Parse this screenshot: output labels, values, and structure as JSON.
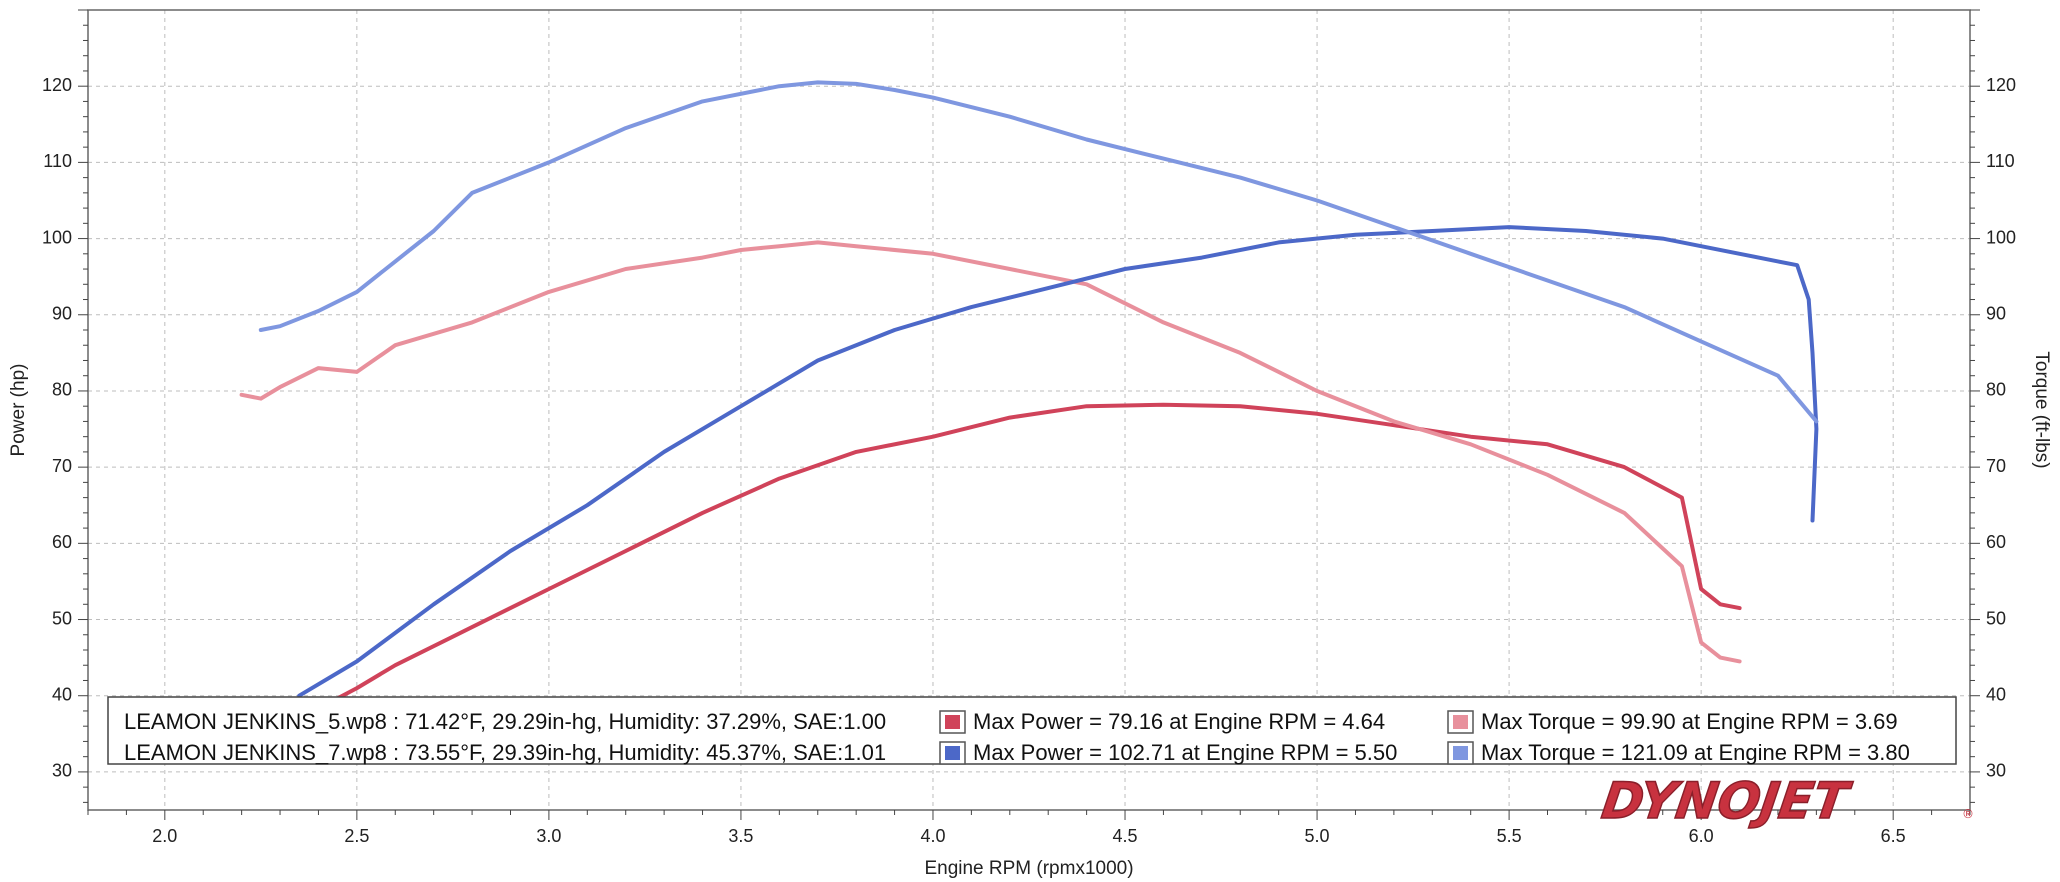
{
  "chart_data": {
    "type": "line",
    "title": "",
    "xlabel": "Engine RPM (rpmx1000)",
    "ylabel_left": "Power (hp)",
    "ylabel_right": "Torque (ft-lbs)",
    "xlim": [
      1.8,
      6.7
    ],
    "ylim_left": [
      25,
      130
    ],
    "ylim_right": [
      25,
      130
    ],
    "x_ticks": [
      "2.0",
      "2.5",
      "3.0",
      "3.5",
      "4.0",
      "4.5",
      "5.0",
      "5.5",
      "6.0",
      "6.5"
    ],
    "y_ticks_left": [
      "30",
      "40",
      "50",
      "60",
      "70",
      "80",
      "90",
      "100",
      "110",
      "120"
    ],
    "y_ticks_right": [
      "30",
      "40",
      "50",
      "60",
      "70",
      "80",
      "90",
      "100",
      "110",
      "120"
    ],
    "grid": true,
    "legend_position": "bottom",
    "colors": {
      "run5_power": "#d0435a",
      "run5_torque": "#e8909c",
      "run7_power": "#4c68c8",
      "run7_torque": "#7f97e0"
    },
    "series": [
      {
        "key": "run5_power",
        "axis": "left",
        "x": [
          2.35,
          2.5,
          2.6,
          2.8,
          3.0,
          3.2,
          3.4,
          3.6,
          3.8,
          4.0,
          4.2,
          4.4,
          4.6,
          4.8,
          5.0,
          5.2,
          5.4,
          5.6,
          5.8,
          5.95,
          6.0,
          6.05,
          6.1
        ],
        "y": [
          37,
          41,
          44,
          49,
          54,
          59,
          64,
          68.5,
          72,
          74,
          76.5,
          78,
          78.2,
          78,
          77,
          75.5,
          74,
          73,
          70,
          66,
          54,
          52,
          51.5
        ]
      },
      {
        "key": "run5_torque",
        "axis": "right",
        "x": [
          2.2,
          2.25,
          2.3,
          2.4,
          2.5,
          2.6,
          2.8,
          3.0,
          3.2,
          3.4,
          3.5,
          3.6,
          3.7,
          3.8,
          4.0,
          4.2,
          4.4,
          4.6,
          4.8,
          5.0,
          5.2,
          5.4,
          5.6,
          5.8,
          5.95,
          6.0,
          6.05,
          6.1
        ],
        "y": [
          79.5,
          79,
          80.5,
          83,
          82.5,
          86,
          89,
          93,
          96,
          97.5,
          98.5,
          99,
          99.5,
          99,
          98,
          96,
          94,
          89,
          85,
          80,
          76,
          73,
          69,
          64,
          57,
          47,
          45,
          44.5
        ]
      },
      {
        "key": "run7_power",
        "axis": "left",
        "x": [
          2.35,
          2.5,
          2.7,
          2.9,
          3.1,
          3.3,
          3.5,
          3.7,
          3.9,
          4.1,
          4.3,
          4.5,
          4.7,
          4.9,
          5.1,
          5.3,
          5.5,
          5.7,
          5.9,
          6.1,
          6.2,
          6.25,
          6.28,
          6.29,
          6.3,
          6.29
        ],
        "y": [
          40,
          44.5,
          52,
          59,
          65,
          72,
          78,
          84,
          88,
          91,
          93.5,
          96,
          97.5,
          99.5,
          100.5,
          101,
          101.5,
          101,
          100,
          98,
          97,
          96.5,
          92,
          85,
          75,
          63
        ]
      },
      {
        "key": "run7_torque",
        "axis": "right",
        "x": [
          2.25,
          2.3,
          2.4,
          2.5,
          2.6,
          2.7,
          2.8,
          3.0,
          3.2,
          3.4,
          3.6,
          3.7,
          3.8,
          3.9,
          4.0,
          4.2,
          4.4,
          4.6,
          4.8,
          5.0,
          5.2,
          5.4,
          5.6,
          5.8,
          6.0,
          6.2,
          6.3
        ],
        "y": [
          88,
          88.5,
          90.5,
          93,
          97,
          101,
          106,
          110,
          114.5,
          118,
          120,
          120.5,
          120.3,
          119.5,
          118.5,
          116,
          113,
          110.5,
          108,
          105,
          101.5,
          98,
          94.5,
          91,
          86.5,
          82,
          76
        ]
      }
    ]
  },
  "legend": {
    "run5_info": "LEAMON JENKINS_5.wp8 : 71.42°F, 29.29in-hg, Humidity: 37.29%, SAE:1.00",
    "run7_info": "LEAMON JENKINS_7.wp8 : 73.55°F, 29.39in-hg, Humidity: 45.37%, SAE:1.01",
    "run5_max_power": "Max Power = 79.16 at Engine RPM = 4.64",
    "run5_max_torque": "Max Torque = 99.90 at Engine RPM = 3.69",
    "run7_max_power": "Max Power = 102.71 at Engine RPM = 5.50",
    "run7_max_torque": "Max Torque = 121.09 at Engine RPM = 3.80"
  },
  "logo": {
    "text": "DYNOJET",
    "color": "#c8323f"
  }
}
